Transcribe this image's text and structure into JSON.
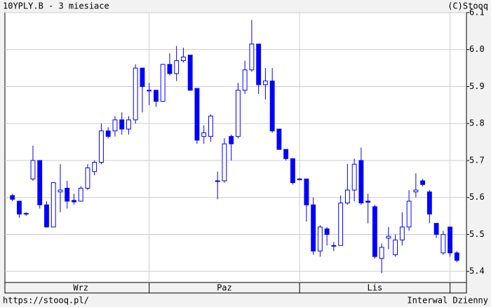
{
  "chart_data": {
    "type": "candlestick",
    "title": "10YPLY.B - 3 miesiace",
    "credit": "(C)Stooq",
    "source": "https://stooq.pl/",
    "interval": "Interwal Dzienny",
    "color": "#0000ff",
    "grid": true,
    "categories": [
      null,
      null,
      null,
      null,
      null,
      null,
      null,
      null,
      null,
      null,
      "Wrz",
      null,
      null,
      null,
      null,
      null,
      null,
      null,
      null,
      null,
      null,
      null,
      null,
      null,
      null,
      null,
      null,
      null,
      null,
      null,
      null,
      "Paz",
      null,
      null,
      null,
      null,
      null,
      null,
      null,
      null,
      null,
      null,
      null,
      null,
      null,
      null,
      null,
      null,
      null,
      null,
      null,
      null,
      null,
      "Lis",
      null,
      null,
      null,
      null,
      null,
      null,
      null,
      null,
      null,
      null,
      null,
      null
    ],
    "x_gridlines": [
      20,
      42,
      64
    ],
    "xlim": [
      -1.1,
      66.4
    ],
    "ylim": [
      5.37,
      6.1
    ],
    "yticks": [
      5.4,
      5.5,
      5.6,
      5.7,
      5.8,
      5.9,
      {
        "value": 6,
        "label": "6.0"
      },
      6.1
    ],
    "open": [
      5.605,
      5.59,
      5.555,
      5.65,
      5.7,
      5.58,
      5.52,
      5.615,
      5.625,
      5.592,
      5.59,
      5.625,
      5.67,
      5.695,
      5.78,
      5.78,
      5.81,
      5.785,
      5.81,
      5.95,
      5.89,
      5.89,
      5.86,
      5.96,
      5.935,
      5.97,
      5.985,
      5.895,
      5.765,
      5.765,
      5.645,
      5.645,
      5.765,
      5.765,
      5.89,
      5.945,
      6.015,
      5.905,
      5.915,
      5.785,
      5.73,
      5.705,
      5.65,
      5.65,
      5.58,
      5.455,
      5.515,
      5.47,
      5.47,
      5.585,
      5.62,
      5.7,
      5.59,
      5.575,
      5.435,
      5.49,
      5.445,
      5.485,
      5.52,
      5.615,
      5.645,
      5.615,
      5.53,
      5.45,
      5.52,
      5.45
    ],
    "high": [
      5.61,
      5.59,
      5.56,
      5.74,
      5.7,
      5.59,
      5.64,
      5.69,
      5.645,
      5.61,
      5.63,
      5.69,
      5.7,
      5.8,
      5.79,
      5.82,
      5.83,
      5.82,
      5.96,
      5.95,
      5.91,
      5.89,
      5.96,
      5.99,
      6.01,
      6.005,
      5.985,
      5.895,
      5.795,
      5.825,
      5.67,
      5.76,
      5.77,
      5.91,
      5.97,
      6.08,
      6.015,
      5.95,
      5.95,
      5.785,
      5.73,
      5.705,
      5.652,
      5.65,
      5.6,
      5.525,
      5.52,
      5.48,
      5.605,
      5.69,
      5.705,
      5.735,
      5.61,
      5.58,
      5.475,
      5.52,
      5.5,
      5.56,
      5.62,
      5.665,
      5.65,
      5.62,
      5.53,
      5.51,
      5.52,
      5.455
    ],
    "low": [
      5.59,
      5.545,
      5.55,
      5.645,
      5.57,
      5.52,
      5.52,
      5.56,
      5.57,
      5.58,
      5.59,
      5.62,
      5.66,
      5.69,
      5.76,
      5.765,
      5.77,
      5.77,
      5.8,
      5.83,
      5.85,
      5.845,
      5.86,
      5.93,
      5.915,
      5.965,
      5.89,
      5.745,
      5.745,
      5.75,
      5.595,
      5.64,
      5.7,
      5.76,
      5.88,
      5.94,
      5.88,
      5.865,
      5.775,
      5.73,
      5.7,
      5.635,
      5.646,
      5.535,
      5.445,
      5.44,
      5.47,
      5.455,
      5.47,
      5.58,
      5.59,
      5.58,
      5.53,
      5.435,
      5.395,
      5.46,
      5.44,
      5.47,
      5.51,
      5.6,
      5.63,
      5.53,
      5.49,
      5.445,
      5.44,
      5.425
    ],
    "close": [
      5.595,
      5.555,
      5.557,
      5.7,
      5.58,
      5.52,
      5.64,
      5.62,
      5.59,
      5.588,
      5.625,
      5.68,
      5.695,
      5.78,
      5.765,
      5.81,
      5.785,
      5.81,
      5.95,
      5.9,
      5.888,
      5.86,
      5.96,
      5.935,
      5.97,
      5.98,
      5.89,
      5.755,
      5.775,
      5.82,
      5.643,
      5.745,
      5.745,
      5.89,
      5.945,
      6.015,
      5.905,
      5.915,
      5.78,
      5.73,
      5.705,
      5.64,
      5.648,
      5.58,
      5.455,
      5.52,
      5.5,
      5.468,
      5.585,
      5.62,
      5.69,
      5.585,
      5.587,
      5.44,
      5.465,
      5.495,
      5.485,
      5.52,
      5.59,
      5.62,
      5.635,
      5.555,
      5.5,
      5.5,
      5.45,
      5.43
    ]
  }
}
